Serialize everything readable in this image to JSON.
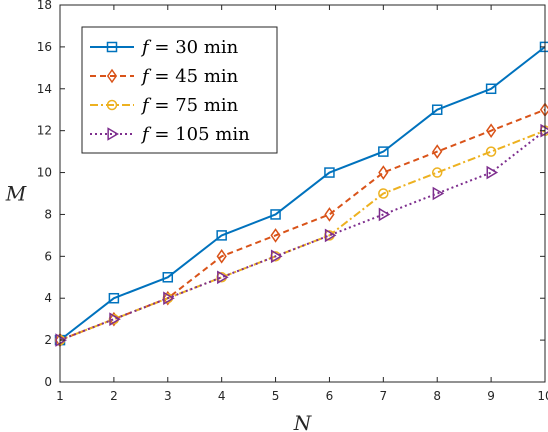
{
  "chart_data": {
    "type": "line",
    "x": [
      1,
      2,
      3,
      4,
      5,
      6,
      7,
      8,
      9,
      10
    ],
    "series": [
      {
        "name_var": "f",
        "name_value": "= 30 min",
        "values": [
          2,
          4,
          5,
          7,
          8,
          10,
          11,
          13,
          14,
          16
        ],
        "color": "#0072BD",
        "dash": "solid",
        "marker": "square"
      },
      {
        "name_var": "f",
        "name_value": "= 45 min",
        "values": [
          2,
          3,
          4,
          6,
          7,
          8,
          10,
          11,
          12,
          13
        ],
        "color": "#D95319",
        "dash": "dashed",
        "marker": "diamond"
      },
      {
        "name_var": "f",
        "name_value": "= 75 min",
        "values": [
          2,
          3,
          4,
          5,
          6,
          7,
          9,
          10,
          11,
          12
        ],
        "color": "#EDB120",
        "dash": "dashdot",
        "marker": "circle"
      },
      {
        "name_var": "f",
        "name_value": "= 105 min",
        "values": [
          2,
          3,
          4,
          5,
          6,
          7,
          8,
          9,
          10,
          12
        ],
        "color": "#7E2F8E",
        "dash": "dotted",
        "marker": "triangle-right"
      }
    ],
    "xlabel": "N",
    "ylabel": "M",
    "xlim": [
      1,
      10
    ],
    "ylim": [
      0,
      18
    ],
    "xticks": [
      1,
      2,
      3,
      4,
      5,
      6,
      7,
      8,
      9,
      10
    ],
    "yticks": [
      0,
      2,
      4,
      6,
      8,
      10,
      12,
      14,
      16,
      18
    ],
    "grid": false,
    "legend_position": "top-left"
  }
}
